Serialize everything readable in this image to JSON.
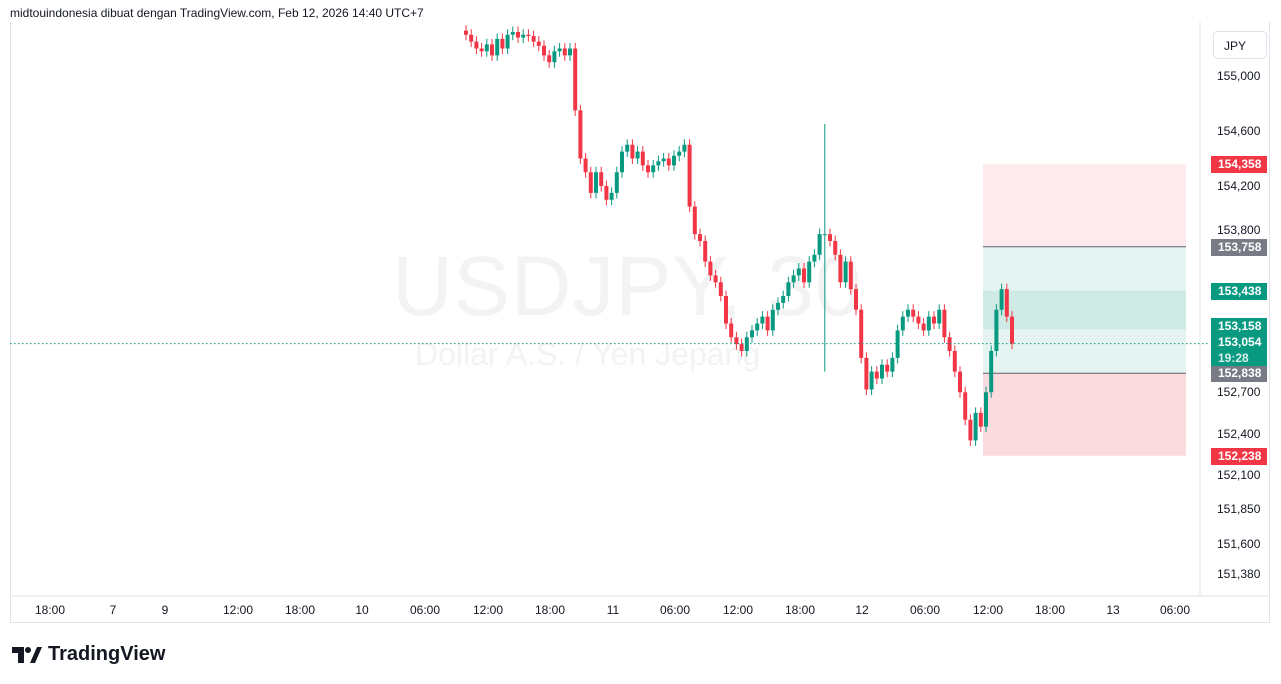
{
  "header": {
    "attribution": "midtouindonesia dibuat dengan TradingView.com, Feb 12, 2026 14:40 UTC+7"
  },
  "watermark": {
    "symbol": "USDJPY, 30",
    "description": "Dollar A.S. / Yen Jepang"
  },
  "currency_button": "JPY",
  "colors": {
    "up": "#089981",
    "down": "#f23645",
    "label_gray": "#787b86",
    "profit_fill": "#e6f4f1",
    "profit_dark": "#cfeae4",
    "loss_fill": "#fcdbdf",
    "loss_light": "#fdeaec"
  },
  "price_axis": {
    "ticks": [
      "155,000",
      "154,600",
      "154,200",
      "153,800",
      "152,700",
      "152,400",
      "152,100",
      "151,850",
      "151,600",
      "151,380"
    ],
    "tick_values": [
      155000,
      154600,
      154200,
      153800,
      152700,
      152400,
      152100,
      151850,
      151600,
      151380
    ]
  },
  "price_labels": [
    {
      "text": "154,358",
      "value": 154358,
      "color": "#f23645"
    },
    {
      "text": "153,758",
      "value": 153758,
      "color": "#787b86"
    },
    {
      "text": "153,438",
      "value": 153438,
      "color": "#089981"
    },
    {
      "text": "152,838",
      "value": 152838,
      "color": "#787b86"
    },
    {
      "text": "152,238",
      "value": 152238,
      "color": "#f23645"
    }
  ],
  "current_price": {
    "entry": "153,158",
    "price": "153,054",
    "countdown": "19:28",
    "value": 153054
  },
  "position_tool": {
    "upper_stop": 154358,
    "upper_entry": 153758,
    "entry_mid_top": 153438,
    "entry_mid_bottom": 153158,
    "lower_entry": 152838,
    "lower_stop": 152238
  },
  "time_axis": [
    "18:00",
    "7",
    "9",
    "12:00",
    "18:00",
    "10",
    "06:00",
    "12:00",
    "18:00",
    "11",
    "06:00",
    "12:00",
    "18:00",
    "12",
    "06:00",
    "12:00",
    "18:00",
    "13",
    "06:00"
  ],
  "chart_data": {
    "type": "candlestick",
    "timeframe": "30",
    "symbol": "USDJPY",
    "close": [
      155300,
      155250,
      155200,
      155180,
      155230,
      155150,
      155270,
      155200,
      155300,
      155320,
      155280,
      155300,
      155290,
      155250,
      155220,
      155150,
      155100,
      155180,
      155200,
      155150,
      155200,
      154750,
      154400,
      154300,
      154150,
      154300,
      154200,
      154100,
      154150,
      154300,
      154450,
      154500,
      154400,
      154450,
      154350,
      154300,
      154350,
      154380,
      154400,
      154350,
      154420,
      154450,
      154500,
      154050,
      153850,
      153800,
      153650,
      153550,
      153500,
      153400,
      153200,
      153100,
      153050,
      153000,
      153100,
      153150,
      153200,
      153250,
      153150,
      153300,
      153350,
      153400,
      153500,
      153550,
      153600,
      153500,
      153650,
      153700,
      153850,
      153850,
      153800,
      153700,
      153500,
      153650,
      153450,
      153300,
      152950,
      152720,
      152850,
      152800,
      152900,
      152850,
      152950,
      153150,
      153250,
      153300,
      153250,
      153200,
      153150,
      153250,
      153200,
      153300,
      153100,
      153000,
      152850,
      152700,
      152500,
      152350,
      152550,
      152450,
      152700,
      153000,
      153300,
      153450,
      153250,
      153054
    ],
    "spike": {
      "index": 69,
      "high": 154650,
      "low": 152850
    }
  },
  "footer": {
    "brand": "TradingView"
  }
}
